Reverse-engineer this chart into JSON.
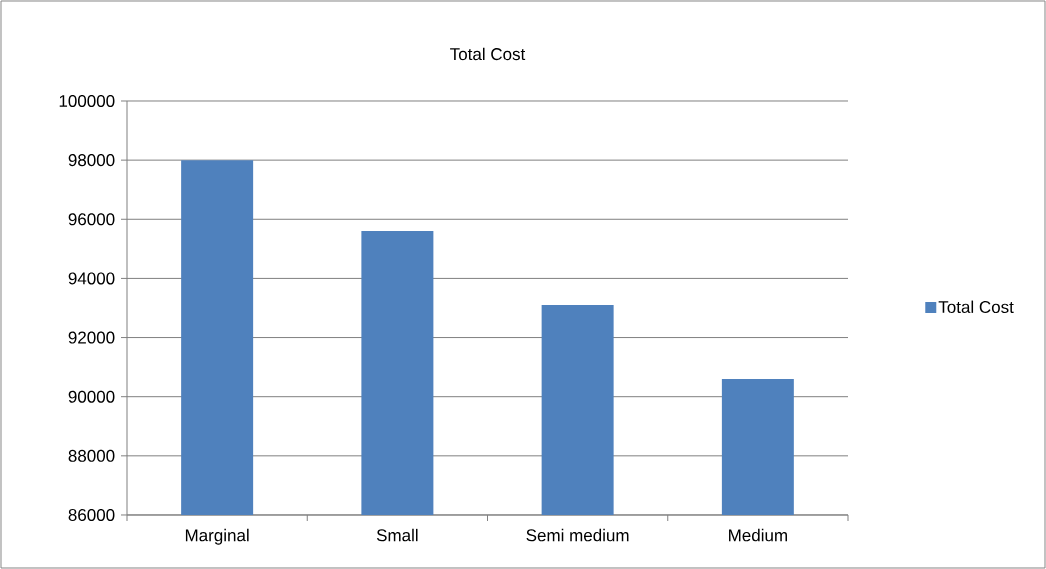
{
  "chart_data": {
    "type": "bar",
    "title": "Total Cost",
    "categories": [
      "Marginal",
      "Small",
      "Semi medium",
      "Medium"
    ],
    "series": [
      {
        "name": "Total Cost",
        "color": "#4f81bd",
        "values": [
          98000,
          95600,
          93100,
          90600
        ]
      }
    ],
    "ylim": [
      86000,
      100000
    ],
    "yticks": [
      86000,
      88000,
      90000,
      92000,
      94000,
      96000,
      98000,
      100000
    ],
    "grid": "y",
    "legend": "right"
  }
}
